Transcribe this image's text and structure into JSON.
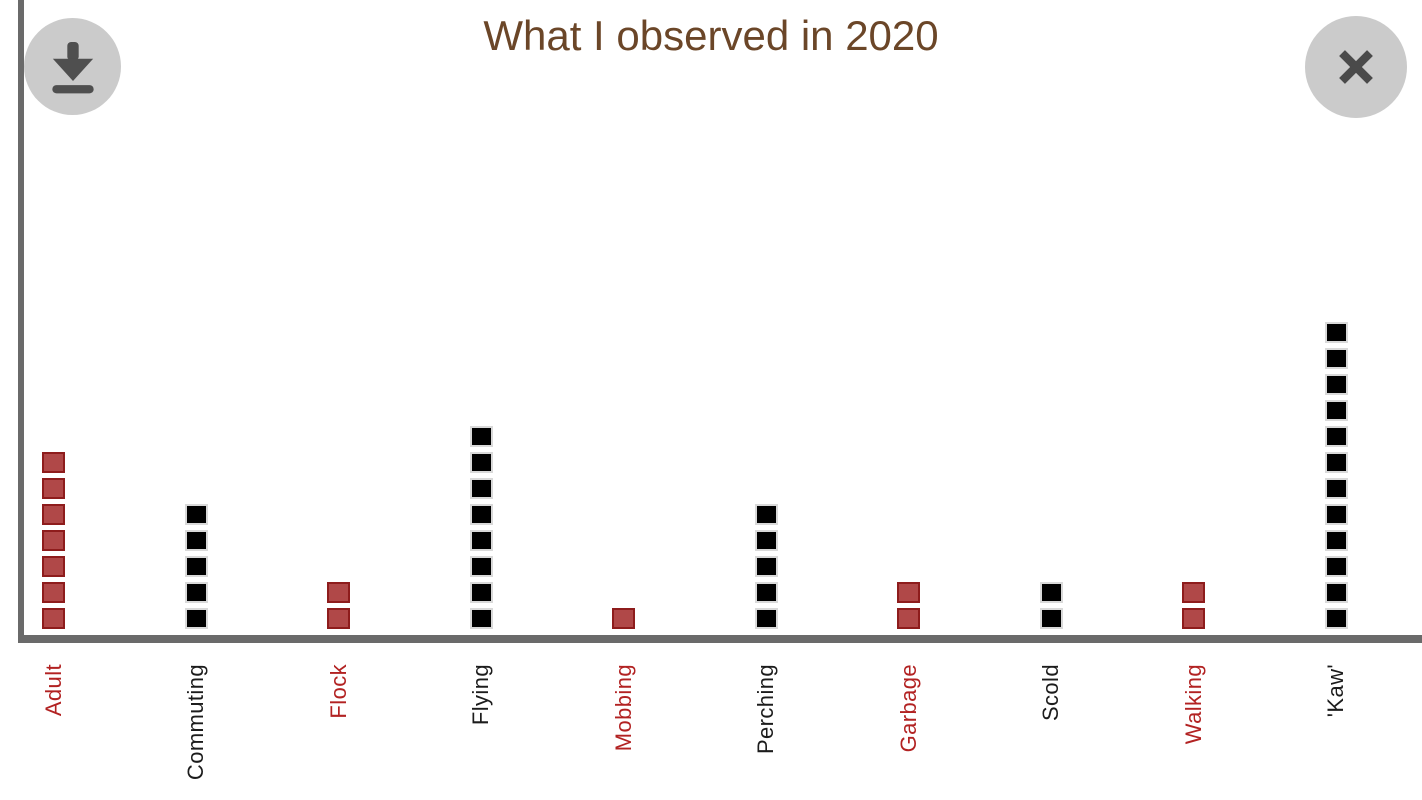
{
  "header": {
    "title": "What I observed in 2020",
    "download_button": {
      "icon": "download-icon"
    },
    "close_button": {
      "icon": "close-icon"
    }
  },
  "chart_data": {
    "type": "bar",
    "subtype": "unit-square-stack",
    "title": "What I observed in 2020",
    "xlabel": "",
    "ylabel": "",
    "ylim": [
      0,
      12
    ],
    "grid": false,
    "legend": "none",
    "unit_value": 1,
    "categories": [
      "Adult",
      "Commuting",
      "Flock",
      "Flying",
      "Mobbing",
      "Perching",
      "Garbage",
      "Scold",
      "Walking",
      "'Kaw'"
    ],
    "values": [
      7,
      5,
      2,
      8,
      1,
      5,
      2,
      2,
      2,
      12
    ],
    "bar_colors": [
      "red",
      "black",
      "red",
      "black",
      "red",
      "black",
      "red",
      "black",
      "red",
      "black"
    ],
    "tick_label_colors": [
      "red",
      "black",
      "red",
      "black",
      "red",
      "black",
      "red",
      "black",
      "red",
      "black"
    ],
    "tick_label_rotation_deg": -90
  },
  "colors": {
    "title": "#6b4628",
    "axis": "#6a6a6a",
    "red_fill": "#b04848",
    "red_border": "#8e1c1c",
    "red_label": "#b22222",
    "black_fill": "#000000",
    "black_border": "#d9d9d9",
    "black_label": "#1c1c1c",
    "button_bg": "#cbcbcb",
    "button_icon": "#4f4f4f"
  }
}
